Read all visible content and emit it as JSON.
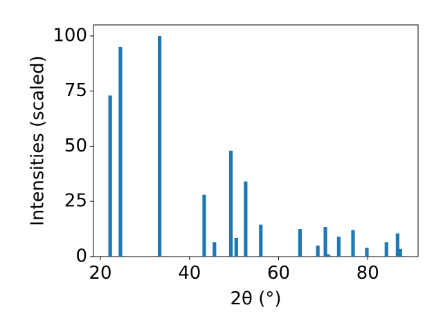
{
  "chart_data": {
    "type": "bar",
    "x_label": "2θ (°)",
    "y_label": "Intensities (scaled)",
    "x": [
      22.2,
      24.5,
      33.3,
      43.3,
      45.6,
      49.3,
      50.5,
      52.6,
      56.0,
      64.8,
      68.8,
      70.5,
      71.2,
      73.5,
      76.7,
      79.8,
      84.2,
      86.7,
      87.3
    ],
    "values": [
      73,
      95,
      100,
      28,
      6.5,
      48,
      8.5,
      34,
      14.5,
      12.5,
      5,
      13.5,
      1,
      9,
      12,
      4,
      6.5,
      10.5,
      3.5
    ],
    "color": "#1f77b4",
    "xlim": [
      18.45,
      91.3
    ],
    "xticks": [
      20,
      40,
      60,
      80
    ],
    "ylim": [
      0,
      105
    ],
    "yticks": [
      0,
      25,
      50,
      75,
      100
    ]
  }
}
